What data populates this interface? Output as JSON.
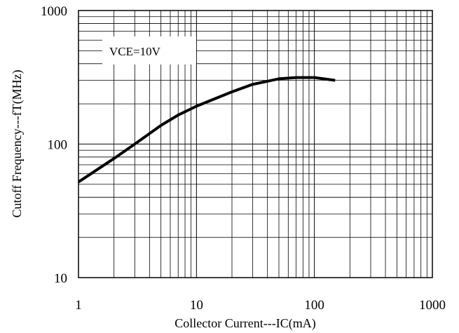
{
  "chart_data": {
    "type": "line",
    "title": "",
    "xlabel": "Collector Current---IC(mA)",
    "ylabel": "Cutoff Frequency---fT(MHz)",
    "x_scale": "log",
    "y_scale": "log",
    "xlim": [
      1,
      1000
    ],
    "ylim": [
      10,
      1000
    ],
    "x_ticks": [
      {
        "value": 1,
        "label": "1"
      },
      {
        "value": 10,
        "label": "10"
      },
      {
        "value": 100,
        "label": "100"
      },
      {
        "value": 1000,
        "label": "1000"
      }
    ],
    "y_ticks": [
      {
        "value": 10,
        "label": "10"
      },
      {
        "value": 100,
        "label": "100"
      },
      {
        "value": 1000,
        "label": "1000"
      }
    ],
    "grid": true,
    "annotation": "VCE=10V",
    "series": [
      {
        "x": [
          1,
          2,
          3,
          5,
          7,
          10,
          20,
          30,
          50,
          70,
          100,
          150
        ],
        "y": [
          52,
          78,
          100,
          138,
          165,
          192,
          246,
          280,
          308,
          315,
          315,
          300
        ]
      }
    ]
  }
}
